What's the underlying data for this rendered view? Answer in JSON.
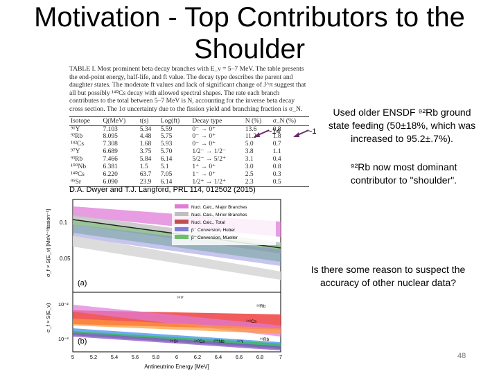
{
  "title": {
    "line1": "Motivation - Top Contributors to the",
    "line2": "Shoulder"
  },
  "table": {
    "caption": "TABLE I.  Most prominent beta decay branches with E_ν = 5–7 MeV. The table presents the end-point energy, half-life, and ft value. The decay type describes the parent and daughter states. The moderate ft values and lack of significant change of J^π suggest that all but possibly ¹⁴⁰Cs decay with allowed spectral shapes. The rate each branch contributes to the total between 5–7 MeV is N, accounting for the inverse beta decay cross section. The 1σ uncertainty due to the fission yield and branching fraction is σ_N.",
    "headers": [
      "Isotope",
      "Q(MeV)",
      "t(s)",
      "Log(ft)",
      "Decay type",
      "N (%)",
      "σ_N (%)"
    ],
    "rows": [
      [
        "⁹⁶Y",
        "7.103",
        "5.34",
        "5.59",
        "0⁻ → 0⁺",
        "13.6",
        "0.8"
      ],
      [
        "⁹²Rb",
        "8.095",
        "4.48",
        "5.75",
        "0⁻ → 0⁺",
        "11.2",
        "1.8"
      ],
      [
        "¹⁴²Cs",
        "7.308",
        "1.68",
        "5.93",
        "0⁻ → 0⁺",
        "5.0",
        "0.7"
      ],
      [
        "⁹⁷Y",
        "6.689",
        "3.75",
        "5.70",
        "1/2⁻ → 1/2⁻",
        "3.8",
        "1.1"
      ],
      [
        "⁹³Rb",
        "7.466",
        "5.84",
        "6.14",
        "5/2⁻ → 5/2⁺",
        "3.1",
        "0.4"
      ],
      [
        "¹⁰⁰Nb",
        "6.381",
        "1.5",
        "5.1",
        "1⁺ → 0⁺",
        "3.0",
        "0.8"
      ],
      [
        "¹⁴⁰Cs",
        "6.220",
        "63.7",
        "7.05",
        "1⁻ → 0⁺",
        "2.5",
        "0.3"
      ],
      [
        "⁹⁵Sr",
        "6.090",
        "23.9",
        "6.14",
        "1/2⁺ → 1/2⁺",
        "2.3",
        "0.5"
      ]
    ]
  },
  "arrows": {
    "left_label": "~14",
    "right_label": "~1"
  },
  "reference": "D.A. Dwyer and T.J. Langford, PRL 114, 012502 (2015)",
  "side": {
    "text1": "Used older ENSDF ⁹²Rb ground state feeding (50±18%, which was increased to 95.2±.7%).",
    "text2": "⁹²Rb now most dominant contributor to \"shoulder\".",
    "text3": "Is there some reason to suspect the accuracy of other nuclear data?"
  },
  "figure": {
    "legend": [
      "Nucl. Calc., Major Branches",
      "Nucl. Calc., Minor Branches",
      "Nucl. Calc., Total",
      "β⁻ Conversion, Huber",
      "β⁻ Conversion, Mueller"
    ],
    "ylabel_top": "σ_f × S(E_ν) [MeV⁻¹fission⁻¹]",
    "ylabel_bottom": "σ_f × S(E_ν)",
    "xlabel": "Antineutrino Energy [MeV]",
    "panel_a": "(a)",
    "panel_b": "(b)",
    "yticks_top": [
      "0.1",
      "0.05"
    ],
    "yticks_bottom": [
      "10⁻²",
      "10⁻³"
    ],
    "xticks": [
      "5",
      "5.2",
      "5.4",
      "5.6",
      "5.8",
      "6",
      "6.2",
      "6.4",
      "6.6",
      "6.8",
      "7"
    ],
    "iso_labels": {
      "y96": "⁹⁶Y",
      "rb92": "⁹²Rb",
      "cs142": "¹⁴²Cs",
      "sr95": "⁹⁵Sr",
      "cs140": "¹⁴⁰Cs",
      "nb100": "¹⁰⁰Nb",
      "y97": "⁹⁷Y",
      "rb93": "⁹³Rb"
    }
  },
  "page_number": "48"
}
